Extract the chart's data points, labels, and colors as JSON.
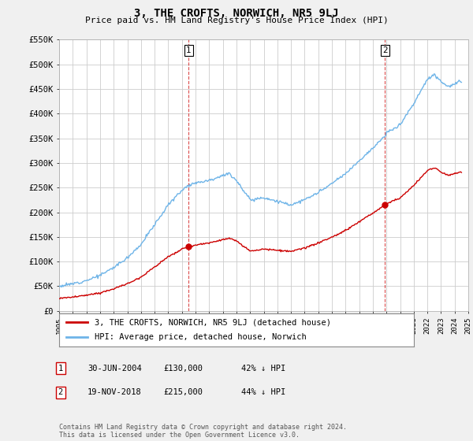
{
  "title": "3, THE CROFTS, NORWICH, NR5 9LJ",
  "subtitle": "Price paid vs. HM Land Registry's House Price Index (HPI)",
  "hpi_label": "HPI: Average price, detached house, Norwich",
  "property_label": "3, THE CROFTS, NORWICH, NR5 9LJ (detached house)",
  "footer": "Contains HM Land Registry data © Crown copyright and database right 2024.\nThis data is licensed under the Open Government Licence v3.0.",
  "transaction1_date": "30-JUN-2004",
  "transaction1_price": "£130,000",
  "transaction1_hpi": "42% ↓ HPI",
  "transaction2_date": "19-NOV-2018",
  "transaction2_price": "£215,000",
  "transaction2_hpi": "44% ↓ HPI",
  "ylim": [
    0,
    550000
  ],
  "yticks": [
    0,
    50000,
    100000,
    150000,
    200000,
    250000,
    300000,
    350000,
    400000,
    450000,
    500000,
    550000
  ],
  "ytick_labels": [
    "£0",
    "£50K",
    "£100K",
    "£150K",
    "£200K",
    "£250K",
    "£300K",
    "£350K",
    "£400K",
    "£450K",
    "£500K",
    "£550K"
  ],
  "hpi_color": "#6EB4E8",
  "property_color": "#CC0000",
  "vline_color": "#CC0000",
  "bg_color": "#f0f0f0",
  "plot_bg": "#ffffff",
  "grid_color": "#cccccc",
  "marker1_x": 2004.5,
  "marker2_x": 2018.9,
  "marker1_y": 130000,
  "marker2_y": 215000,
  "xmin": 1995,
  "xmax": 2025
}
